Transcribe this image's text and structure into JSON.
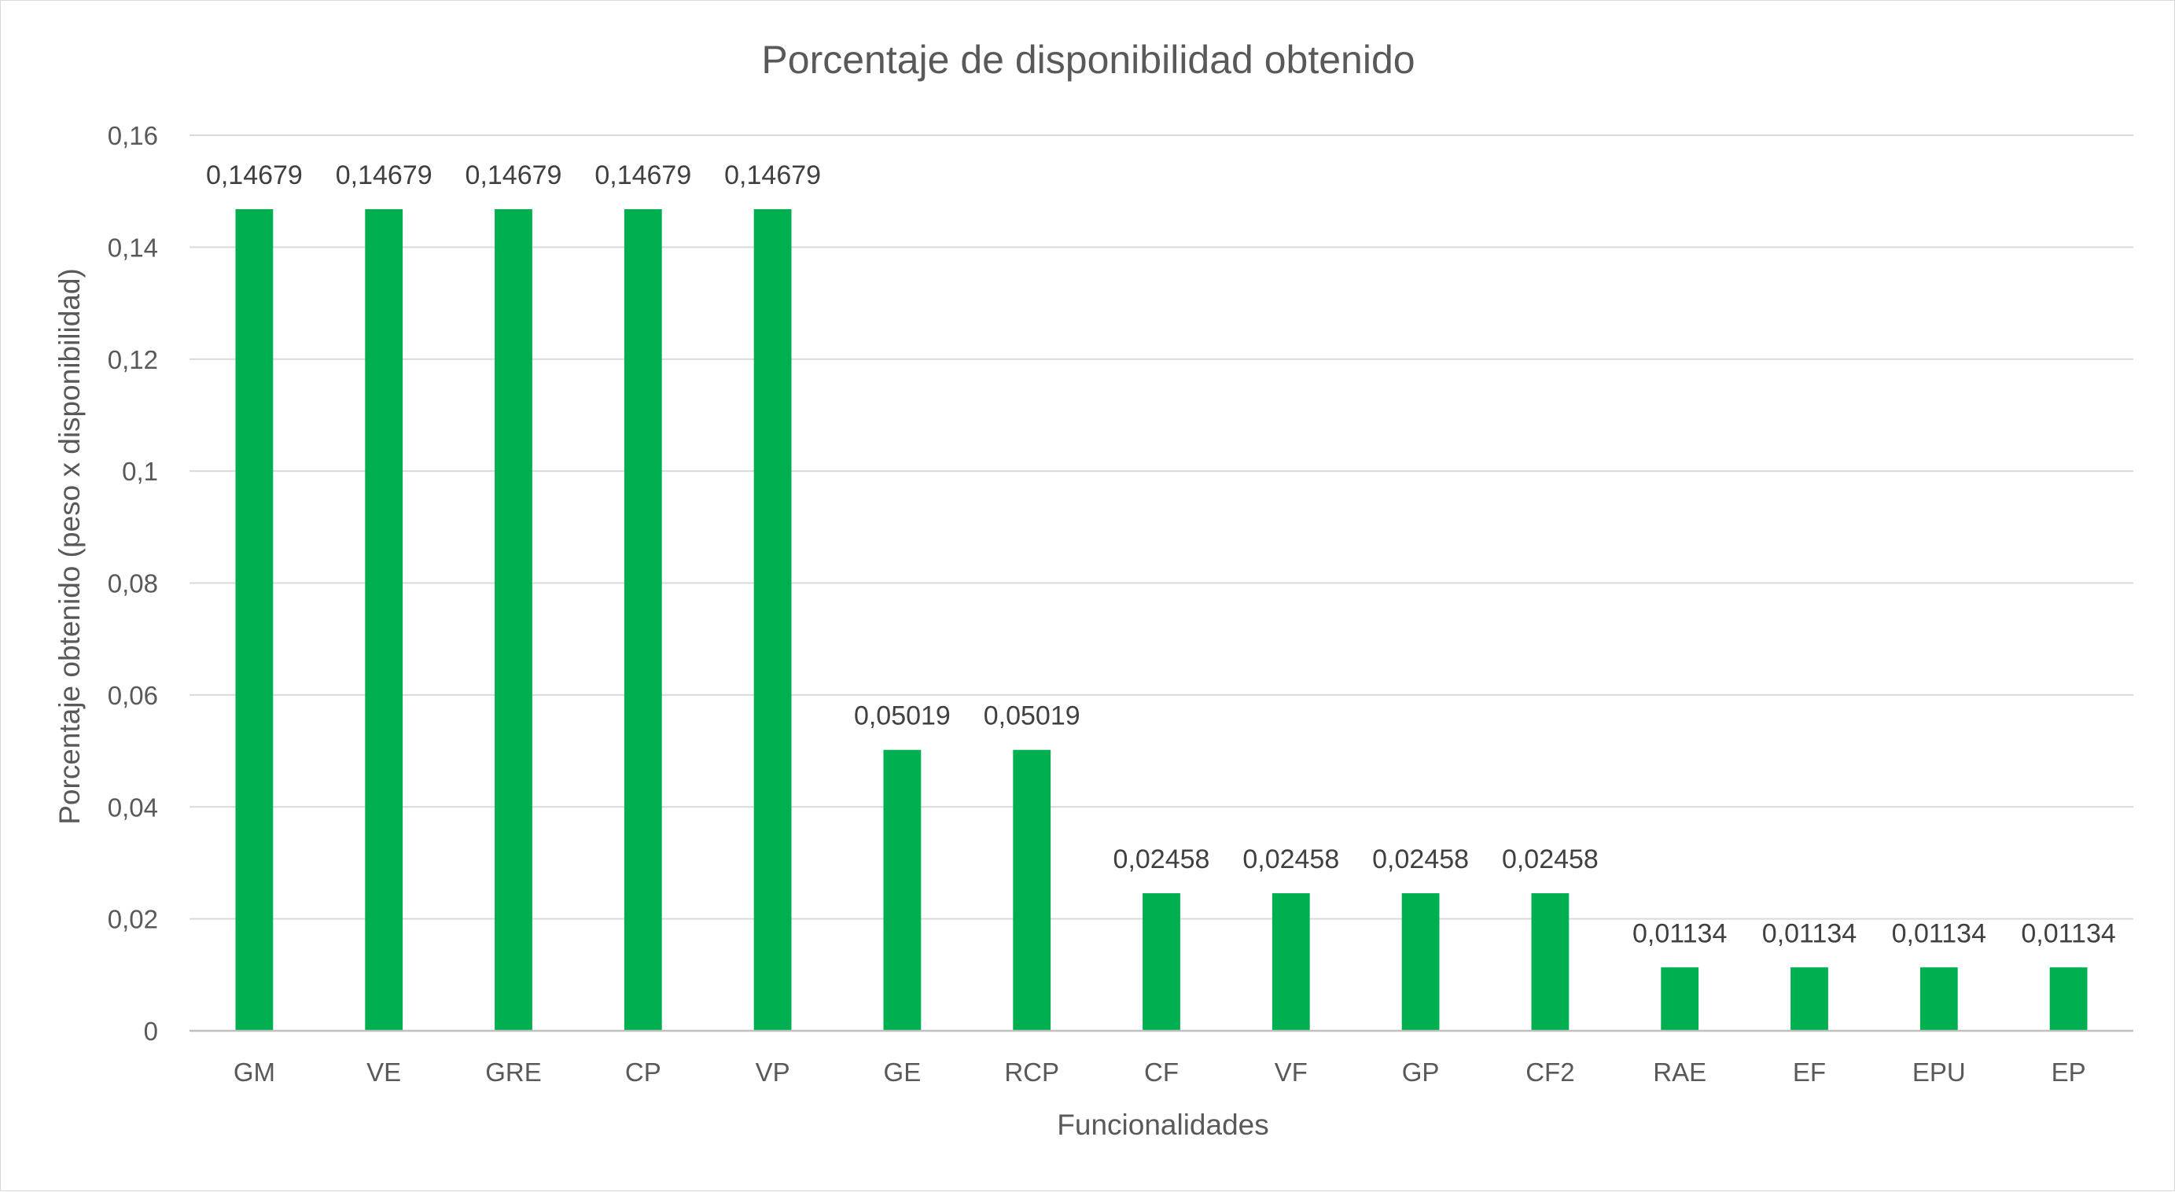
{
  "chart_data": {
    "type": "bar",
    "title": "Porcentaje de disponibilidad obtenido",
    "xlabel": "Funcionalidades",
    "ylabel": "Porcentaje obtenido (peso x disponibilidad)",
    "categories": [
      "GM",
      "VE",
      "GRE",
      "CP",
      "VP",
      "GE",
      "RCP",
      "CF",
      "VF",
      "GP",
      "CF2",
      "RAE",
      "EF",
      "EPU",
      "EP"
    ],
    "values": [
      0.14679,
      0.14679,
      0.14679,
      0.14679,
      0.14679,
      0.05019,
      0.05019,
      0.02458,
      0.02458,
      0.02458,
      0.02458,
      0.01134,
      0.01134,
      0.01134,
      0.01134
    ],
    "data_labels": [
      "0,14679",
      "0,14679",
      "0,14679",
      "0,14679",
      "0,14679",
      "0,05019",
      "0,05019",
      "0,02458",
      "0,02458",
      "0,02458",
      "0,02458",
      "0,01134",
      "0,01134",
      "0,01134",
      "0,01134"
    ],
    "ylim": [
      0,
      0.16
    ],
    "yticks": [
      0,
      0.02,
      0.04,
      0.06,
      0.08,
      0.1,
      0.12,
      0.14,
      0.16
    ],
    "ytick_labels": [
      "0",
      "0,02",
      "0,04",
      "0,06",
      "0,08",
      "0,1",
      "0,12",
      "0,14",
      "0,16"
    ],
    "grid": true,
    "legend": "none",
    "bar_color": "#00B050"
  }
}
